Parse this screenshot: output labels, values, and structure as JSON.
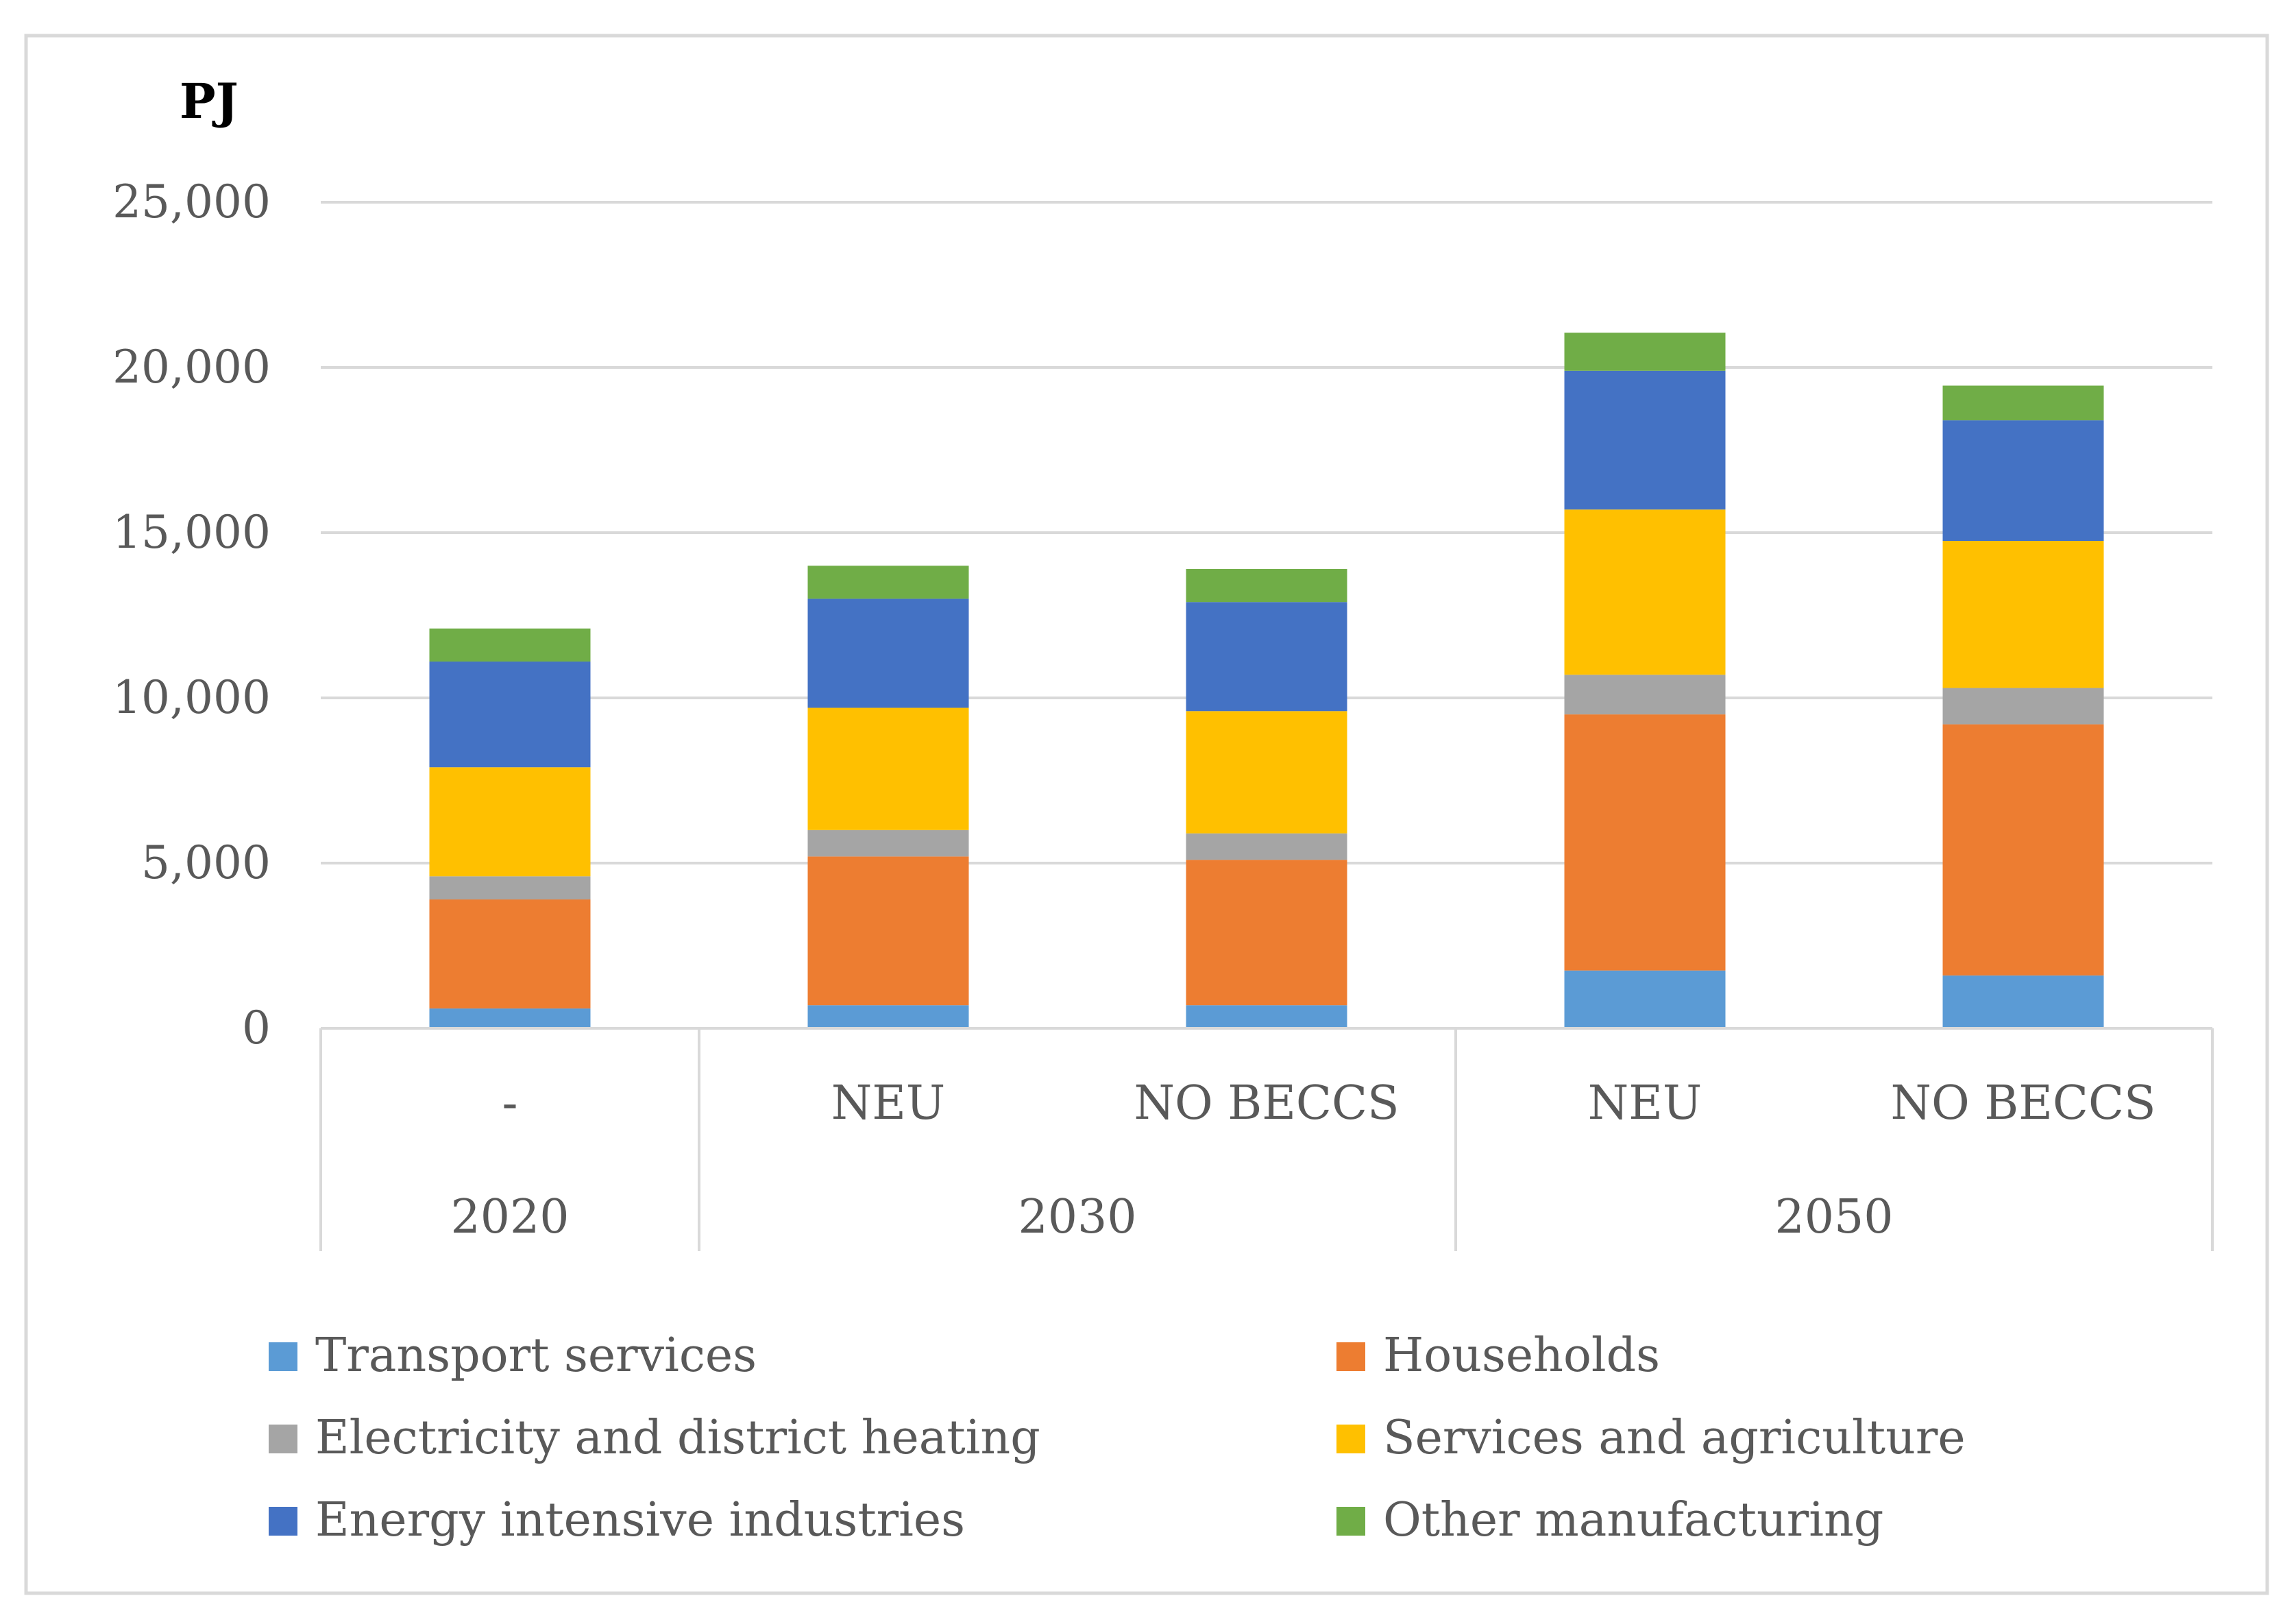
{
  "chart_data": {
    "type": "bar",
    "stacked": true,
    "y_unit_label": "PJ",
    "ylim": [
      0,
      25000
    ],
    "y_ticks": [
      0,
      5000,
      10000,
      15000,
      20000,
      25000
    ],
    "y_tick_labels": [
      "0",
      "5,000",
      "10,000",
      "15,000",
      "20,000",
      "25,000"
    ],
    "grid": true,
    "legend_position": "bottom",
    "categories": [
      "-",
      "NEU",
      "NO BECCS",
      "NEU",
      "NO BECCS"
    ],
    "groups": [
      {
        "label": "2020",
        "span": 1
      },
      {
        "label": "2030",
        "span": 2
      },
      {
        "label": "2050",
        "span": 2
      }
    ],
    "series": [
      {
        "name": "Transport services",
        "color": "#5B9BD5",
        "values": [
          600,
          700,
          700,
          1750,
          1600
        ]
      },
      {
        "name": "Households",
        "color": "#ED7D31",
        "values": [
          3300,
          4500,
          4400,
          7750,
          7600
        ]
      },
      {
        "name": "Electricity and district heating",
        "color": "#A5A5A5",
        "values": [
          700,
          800,
          800,
          1200,
          1100
        ]
      },
      {
        "name": "Services and agriculture",
        "color": "#FFC000",
        "values": [
          3300,
          3700,
          3700,
          5000,
          4450
        ]
      },
      {
        "name": "Energy intensive industries",
        "color": "#4472C4",
        "values": [
          3200,
          3300,
          3300,
          4200,
          3650
        ]
      },
      {
        "name": "Other manufacturing",
        "color": "#70AD47",
        "values": [
          1000,
          1000,
          1000,
          1150,
          1050
        ]
      }
    ]
  }
}
